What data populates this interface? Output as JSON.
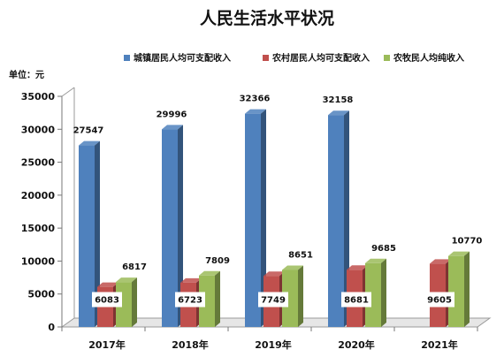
{
  "chart_data": {
    "type": "bar",
    "title": "人民生活水平状况",
    "unit_label": "单位：元",
    "categories": [
      "2017年",
      "2018年",
      "2019年",
      "2020年",
      "2021年"
    ],
    "series": [
      {
        "name": "城镇居民人均可支配收入",
        "color": "#4f81bd",
        "values": [
          27547,
          29996,
          32366,
          32158,
          null
        ],
        "labels": [
          "27547",
          "29996",
          "32366",
          "32158",
          ""
        ]
      },
      {
        "name": "农村居民人均可支配收入",
        "color": "#c0504d",
        "values": [
          6083,
          6723,
          7749,
          8681,
          9605
        ],
        "labels": [
          "6083",
          "6723",
          "7749",
          "8681",
          "9605"
        ]
      },
      {
        "name": "农牧民人均纯收入",
        "color": "#9bbb59",
        "values": [
          6817,
          7809,
          8651,
          9685,
          10770
        ],
        "labels": [
          "6817",
          "7809",
          "8651",
          "9685",
          "10770"
        ]
      }
    ],
    "yticks": [
      "0",
      "5000",
      "10000",
      "15000",
      "20000",
      "25000",
      "30000",
      "35000"
    ],
    "ylim": [
      0,
      35000
    ],
    "legend_position": "top"
  }
}
